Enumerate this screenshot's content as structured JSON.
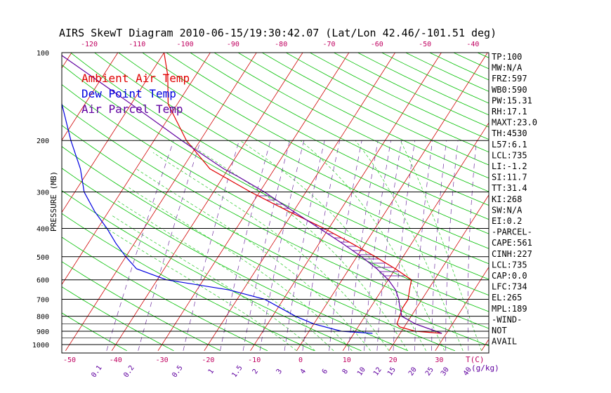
{
  "chart_data": {
    "type": "line",
    "title": "AIRS SkewT Diagram 2010-06-15/19:30:42.07 (Lat/Lon 42.46/-101.51 deg)",
    "ylabel": "PRESSURE (MB)",
    "xlabel": "T(C)",
    "mixing_ratio_unit": "(g/kg)",
    "ylim": [
      1000,
      100
    ],
    "xlim": [
      -50,
      40
    ],
    "y_scale": "log",
    "pressure_ticks": [
      100,
      200,
      300,
      400,
      500,
      600,
      700,
      800,
      900,
      1000
    ],
    "bottom_temp_ticks": [
      "-50",
      "-40",
      "-30",
      "-20",
      "-10",
      "0",
      "10",
      "20",
      "30"
    ],
    "top_temp_ticks": [
      "-120",
      "-110",
      "-100",
      "-90",
      "-80",
      "-70",
      "-60",
      "-50",
      "-40"
    ],
    "mixing_ratio_labels": [
      "0.1",
      "0.2",
      "0.5",
      "1",
      "1.5",
      "2",
      "3",
      "4",
      "6",
      "8",
      "10",
      "12",
      "15",
      "20",
      "25",
      "30",
      "40"
    ],
    "legend": {
      "placement": "top-left",
      "entries": [
        {
          "label": "Ambient Air Temp",
          "color": "#e00000"
        },
        {
          "label": "Dew Point Temp",
          "color": "#0000e0"
        },
        {
          "label": "Air Parcel Temp",
          "color": "#6000a0"
        }
      ]
    },
    "series": [
      {
        "name": "Ambient Air Temp",
        "color": "#e00000",
        "points": [
          [
            915,
            29
          ],
          [
            900,
            23
          ],
          [
            870,
            19
          ],
          [
            850,
            18
          ],
          [
            750,
            17
          ],
          [
            700,
            17
          ],
          [
            650,
            16
          ],
          [
            600,
            15
          ],
          [
            550,
            10
          ],
          [
            500,
            4
          ],
          [
            450,
            -3
          ],
          [
            400,
            -11
          ],
          [
            350,
            -21
          ],
          [
            300,
            -32
          ],
          [
            250,
            -44
          ],
          [
            200,
            -53
          ],
          [
            150,
            -62
          ],
          [
            120,
            -66
          ],
          [
            100,
            -70
          ]
        ]
      },
      {
        "name": "Dew Point Temp",
        "color": "#0000e0",
        "points": [
          [
            915,
            14
          ],
          [
            900,
            7
          ],
          [
            850,
            0
          ],
          [
            800,
            -5
          ],
          [
            700,
            -14
          ],
          [
            650,
            -23
          ],
          [
            600,
            -38
          ],
          [
            550,
            -46
          ],
          [
            500,
            -50
          ],
          [
            450,
            -54
          ],
          [
            400,
            -58
          ],
          [
            350,
            -63
          ],
          [
            300,
            -68
          ],
          [
            250,
            -72
          ],
          [
            200,
            -78
          ],
          [
            150,
            -85
          ],
          [
            100,
            -95
          ]
        ]
      },
      {
        "name": "Air Parcel Temp",
        "color": "#6000a0",
        "points": [
          [
            915,
            29
          ],
          [
            850,
            22
          ],
          [
            800,
            18
          ],
          [
            735,
            16
          ],
          [
            700,
            15
          ],
          [
            650,
            13
          ],
          [
            600,
            10
          ],
          [
            550,
            6
          ],
          [
            500,
            1
          ],
          [
            450,
            -5
          ],
          [
            400,
            -12
          ],
          [
            350,
            -20
          ],
          [
            300,
            -29
          ],
          [
            265,
            -37
          ],
          [
            250,
            -41
          ],
          [
            200,
            -54
          ],
          [
            150,
            -70
          ],
          [
            100,
            -93
          ]
        ]
      }
    ],
    "stats_panel": [
      "TP:100",
      "MW:N/A",
      "FRZ:597",
      "WB0:590",
      "PW:15.31",
      "RH:17.1",
      "MAXT:23.0",
      "TH:4530",
      "L57:6.1",
      "LCL:735",
      "LI:-1.2",
      "SI:11.7",
      "TT:31.4",
      "KI:268",
      "SW:N/A",
      "EI:0.2",
      "-PARCEL-",
      "CAPE:561",
      "CINH:227",
      "LCL:735",
      "CAP:0.0",
      "LFC:734",
      "EL:265",
      "MPL:189",
      "-WIND-",
      "NOT",
      "AVAIL"
    ]
  },
  "colors": {
    "isotherm": "#d00000",
    "dry_adiabat": "#00c000",
    "moist_adiabat": "#40d040",
    "mixing_ratio": "#7030a0",
    "isobar": "#000000"
  }
}
